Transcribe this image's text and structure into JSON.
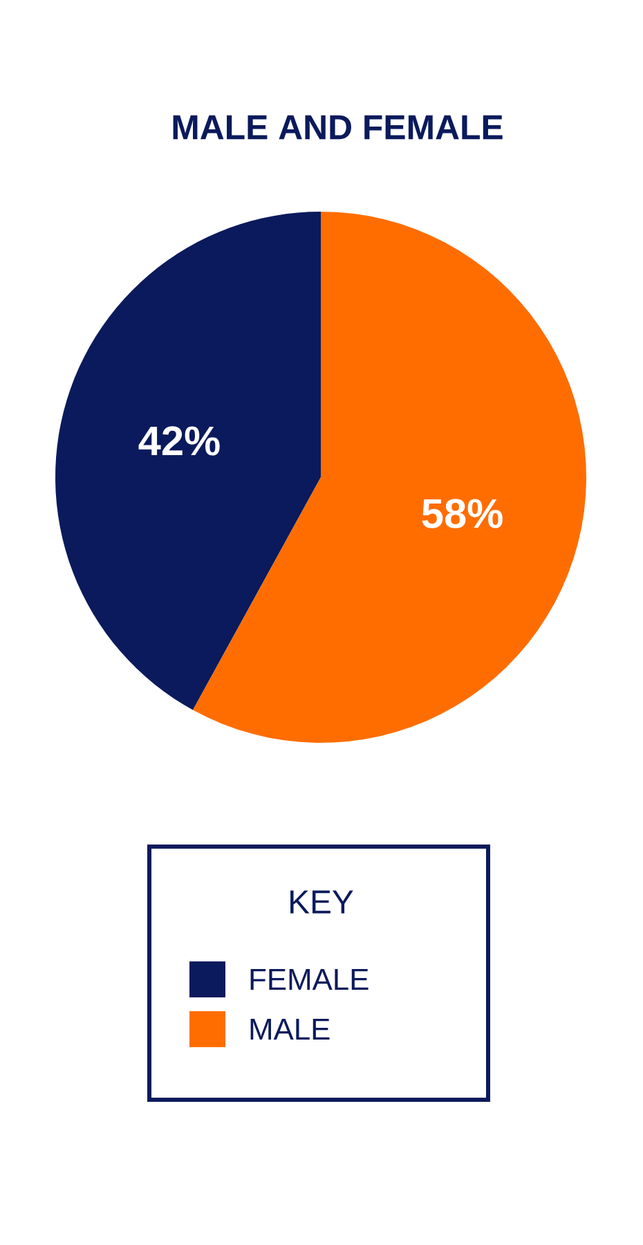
{
  "chart_data": {
    "type": "pie",
    "title": "MALE AND FEMALE",
    "legend_title": "KEY",
    "legend": "bottom",
    "categories": [
      "FEMALE",
      "MALE"
    ],
    "values": [
      42,
      58
    ],
    "value_labels": [
      "42%",
      "58%"
    ],
    "colors": [
      "#0a1a5c",
      "#ff6d00"
    ]
  }
}
